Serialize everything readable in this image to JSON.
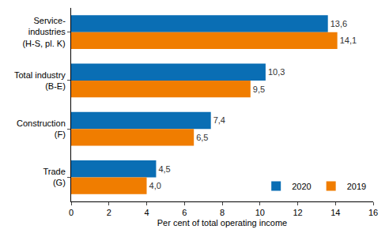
{
  "chart_data": {
    "type": "bar",
    "orientation": "horizontal",
    "categories": [
      "Service-\nindustries\n(H-S, pl. K)",
      "Total industry\n(B-E)",
      "Construction\n(F)",
      "Trade\n(G)"
    ],
    "series": [
      {
        "name": "2020",
        "color": "#0a6eb4",
        "values": [
          13.6,
          10.3,
          7.4,
          4.5
        ],
        "value_labels": [
          "13,6",
          "10,3",
          "7,4",
          "4,5"
        ]
      },
      {
        "name": "2019",
        "color": "#f07d00",
        "values": [
          14.1,
          9.5,
          6.5,
          4.0
        ],
        "value_labels": [
          "14,1",
          "9,5",
          "6,5",
          "4,0"
        ]
      }
    ],
    "x_label": "Per cent of total operating income",
    "xlim": [
      0,
      16
    ],
    "xticks": [
      0,
      2,
      4,
      6,
      8,
      10,
      12,
      14,
      16
    ],
    "grid": false,
    "legend": "lower right",
    "data_labels": true
  }
}
